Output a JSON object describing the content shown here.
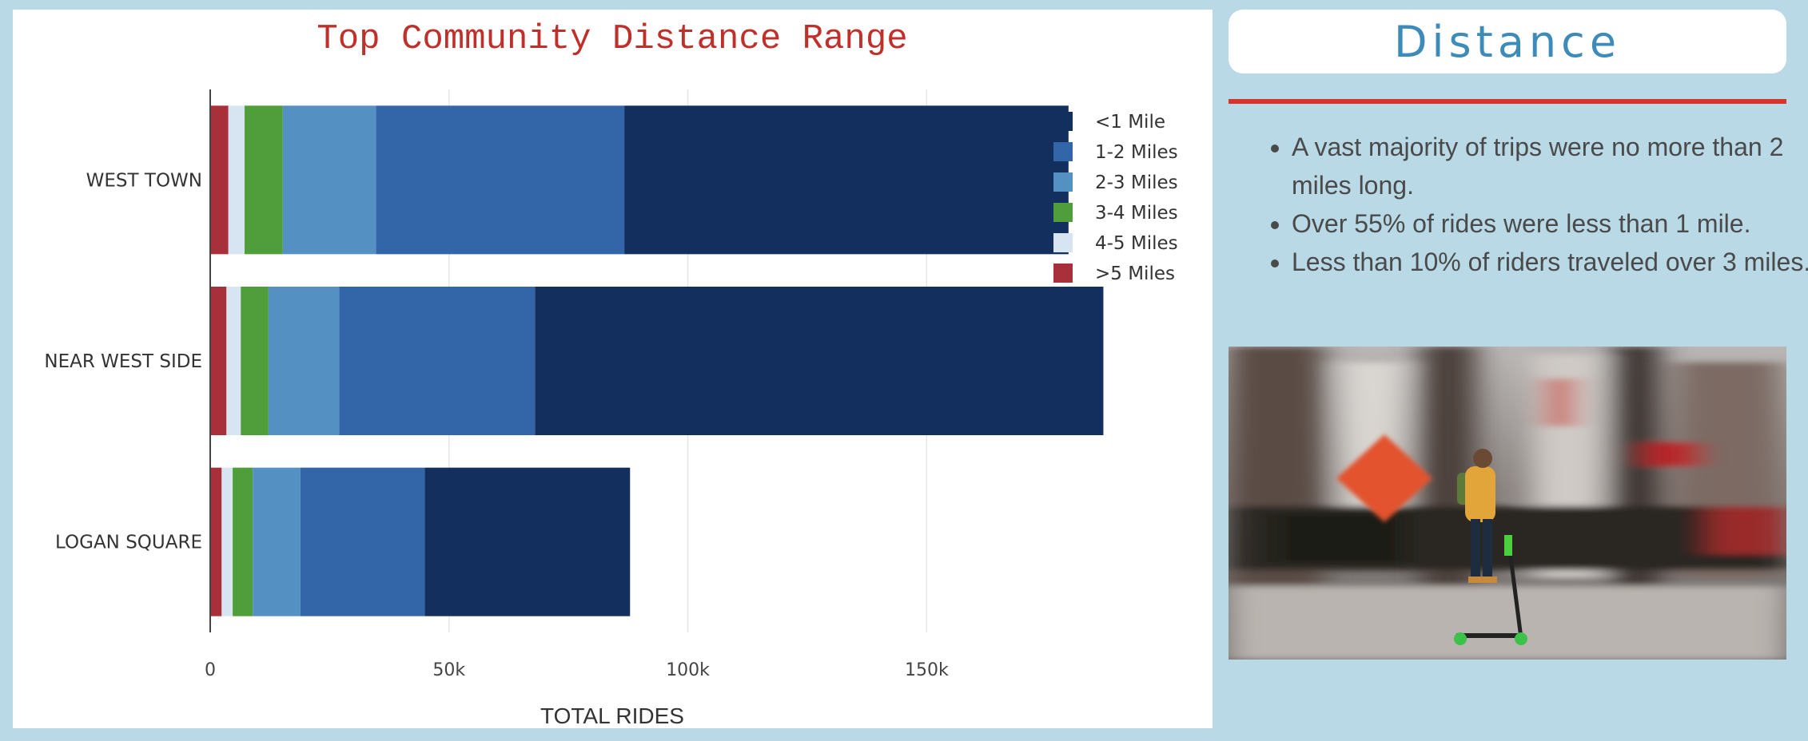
{
  "sidebar": {
    "title": "Distance",
    "notes": [
      "A vast majority of trips were no more than 2 miles long.",
      "Over 55% of rides were less than 1 mile.",
      "Less than 10% of riders traveled over 3 miles."
    ],
    "photo_icon": "scooter-rider-photo"
  },
  "chart_data": {
    "type": "bar",
    "orientation": "horizontal",
    "stacked": true,
    "title": "Top Community Distance Range",
    "xlabel": "TOTAL RIDES",
    "ylabel": "",
    "categories": [
      "WEST TOWN",
      "NEAR WEST SIDE",
      "LOGAN SQUARE"
    ],
    "xlim": [
      0,
      205000
    ],
    "xticks": [
      0,
      50000,
      100000,
      150000
    ],
    "xtick_labels": [
      "0",
      "50k",
      "100k",
      "150k"
    ],
    "grid": true,
    "legend_position": "top-right",
    "series": [
      {
        "name": ">5 Miles",
        "color": "#a8303a",
        "values": [
          3800,
          3400,
          2400
        ]
      },
      {
        "name": "4-5 Miles",
        "color": "#d6e5f1",
        "values": [
          3400,
          3000,
          2300
        ]
      },
      {
        "name": "3-4 Miles",
        "color": "#4f9e3b",
        "values": [
          8000,
          5800,
          4200
        ]
      },
      {
        "name": "2-3 Miles",
        "color": "#5590c2",
        "values": [
          19500,
          14800,
          10000
        ]
      },
      {
        "name": "1-2 Miles",
        "color": "#3366a8",
        "values": [
          52000,
          41000,
          26000
        ]
      },
      {
        "name": "<1 Mile",
        "color": "#132f5e",
        "values": [
          93000,
          119000,
          43000
        ]
      }
    ],
    "legend_order": [
      "<1 Mile",
      "1-2 Miles",
      "2-3 Miles",
      "3-4 Miles",
      "4-5 Miles",
      ">5 Miles"
    ]
  }
}
